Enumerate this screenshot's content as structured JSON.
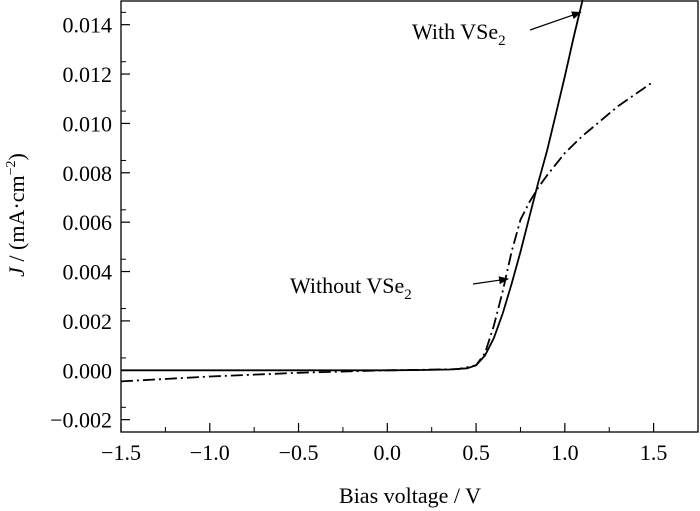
{
  "chart_data": {
    "type": "line",
    "title": "",
    "xlabel": "Bias voltage / V",
    "ylabel": {
      "italic_symbol": "J",
      "rest": " / (mA·cm",
      "superscript": "−2",
      "close": ")"
    },
    "xlim": [
      -1.5,
      1.75
    ],
    "ylim": [
      -0.0025,
      0.015
    ],
    "x_ticks": [
      -1.5,
      -1.0,
      -0.5,
      0.0,
      0.5,
      1.0,
      1.5
    ],
    "x_tick_labels": [
      "−1.5",
      "−1.0",
      "−0.5",
      "0.0",
      "0.5",
      "1.0",
      "1.5"
    ],
    "y_ticks": [
      -0.002,
      0.0,
      0.002,
      0.004,
      0.006,
      0.008,
      0.01,
      0.012,
      0.014
    ],
    "y_tick_labels": [
      "−0.002",
      "0.000",
      "0.002",
      "0.004",
      "0.006",
      "0.008",
      "0.010",
      "0.012",
      "0.014"
    ],
    "grid": false,
    "legend": "none",
    "series": [
      {
        "style": "solid",
        "color": "#000000",
        "points": [
          [
            -1.5,
            0.0
          ],
          [
            -1.0,
            0.0
          ],
          [
            -0.5,
            0.0
          ],
          [
            0.0,
            0.0
          ],
          [
            0.2,
            1e-05
          ],
          [
            0.35,
            3e-05
          ],
          [
            0.45,
            8e-05
          ],
          [
            0.5,
            0.0002
          ],
          [
            0.55,
            0.0006
          ],
          [
            0.6,
            0.0013
          ],
          [
            0.65,
            0.0023
          ],
          [
            0.7,
            0.0035
          ],
          [
            0.75,
            0.0048
          ],
          [
            0.8,
            0.0062
          ],
          [
            0.85,
            0.0076
          ],
          [
            0.9,
            0.0089
          ],
          [
            0.95,
            0.0104
          ],
          [
            1.0,
            0.0119
          ],
          [
            1.05,
            0.0135
          ],
          [
            1.1,
            0.015
          ]
        ]
      },
      {
        "style": "dashdot",
        "color": "#000000",
        "points": [
          [
            -1.5,
            -0.00045
          ],
          [
            -1.0,
            -0.00025
          ],
          [
            -0.5,
            -0.0001
          ],
          [
            0.0,
            0.0
          ],
          [
            0.2,
            2e-05
          ],
          [
            0.4,
            5e-05
          ],
          [
            0.5,
            0.0002
          ],
          [
            0.55,
            0.0007
          ],
          [
            0.6,
            0.0018
          ],
          [
            0.65,
            0.0032
          ],
          [
            0.7,
            0.0048
          ],
          [
            0.75,
            0.0061
          ],
          [
            0.8,
            0.0068
          ],
          [
            0.85,
            0.0074
          ],
          [
            0.9,
            0.0079
          ],
          [
            1.0,
            0.0088
          ],
          [
            1.1,
            0.0095
          ],
          [
            1.2,
            0.0101
          ],
          [
            1.3,
            0.0107
          ],
          [
            1.4,
            0.0112
          ],
          [
            1.5,
            0.0117
          ]
        ]
      }
    ],
    "annotations": [
      {
        "label": "With VSe",
        "sub": "2",
        "arrow_to": [
          1.09,
          0.0145
        ]
      },
      {
        "label": "Without VSe",
        "sub": "2",
        "arrow_to": [
          0.68,
          0.0037
        ]
      }
    ]
  }
}
